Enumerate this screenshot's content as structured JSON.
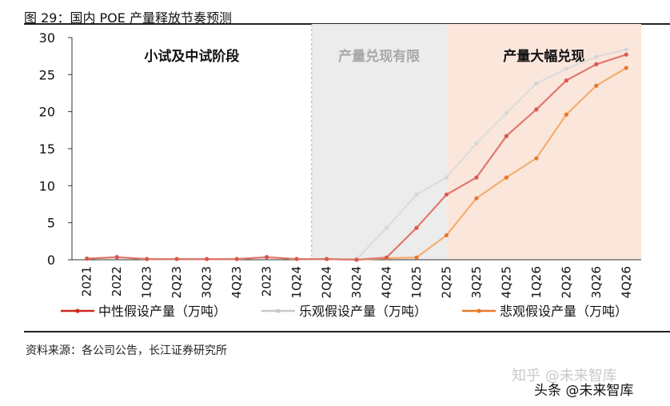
{
  "figure_title": "图 29：国内 POE 产量释放节奏预测",
  "source_note": "资料来源：各公司公告，长江证券研究所",
  "watermark": {
    "top": "知乎 @未来智库",
    "bottom": "头条 @未来智库"
  },
  "colors": {
    "neutral": "#e07870",
    "optimistic": "#dcdcdc",
    "pessimistic": "#f4ae6e",
    "phase_gray": "#ececec",
    "phase_peach": "#fbe6dc",
    "legend_neutral": "#cc2a1c",
    "legend_optimistic": "#c8c8c8",
    "legend_pessimistic": "#e8782a"
  },
  "chart_data": {
    "type": "line",
    "categories": [
      "2021",
      "2022",
      "1Q23",
      "2Q23",
      "3Q23",
      "4Q23",
      "2023",
      "1Q24",
      "2Q24",
      "3Q24",
      "4Q24",
      "1Q25",
      "2Q25",
      "3Q25",
      "4Q25",
      "1Q26",
      "2Q26",
      "3Q26",
      "4Q26"
    ],
    "ylim": [
      0,
      30
    ],
    "yticks": [
      0,
      5,
      10,
      15,
      20,
      25,
      30
    ],
    "grid": false,
    "legend_position": "bottom",
    "phases": [
      {
        "label": "小试及中试阶段",
        "from": "2021",
        "to": "1Q24",
        "shaded": false
      },
      {
        "label": "产量兑现有限",
        "from": "2Q24",
        "to": "2Q25",
        "shaded": true
      },
      {
        "label": "产量大幅兑现",
        "from": "2Q25",
        "to": "4Q26",
        "shaded": true
      }
    ],
    "series": [
      {
        "name": "中性假设产量（万吨）",
        "color_key": "neutral",
        "values": [
          0.15,
          0.35,
          0.1,
          0.1,
          0.1,
          0.1,
          0.35,
          0.1,
          0.1,
          0,
          0.3,
          4.3,
          8.8,
          11.1,
          16.7,
          20.3,
          24.2,
          26.4,
          27.7
        ]
      },
      {
        "name": "乐观假设产量（万吨）",
        "color_key": "optimistic",
        "values": [
          0.15,
          0.35,
          0.1,
          0.1,
          0.1,
          0.1,
          0.35,
          0.1,
          0.1,
          0.1,
          4.3,
          8.8,
          11.1,
          15.7,
          19.8,
          23.8,
          25.8,
          27.4,
          28.4
        ]
      },
      {
        "name": "悲观假设产量（万吨）",
        "color_key": "pessimistic",
        "values": [
          0.15,
          0.35,
          0.1,
          0.1,
          0.1,
          0.1,
          0.35,
          0.1,
          0.1,
          0,
          0.2,
          0.3,
          3.3,
          8.3,
          11.1,
          13.7,
          19.6,
          23.5,
          25.9
        ]
      }
    ]
  }
}
